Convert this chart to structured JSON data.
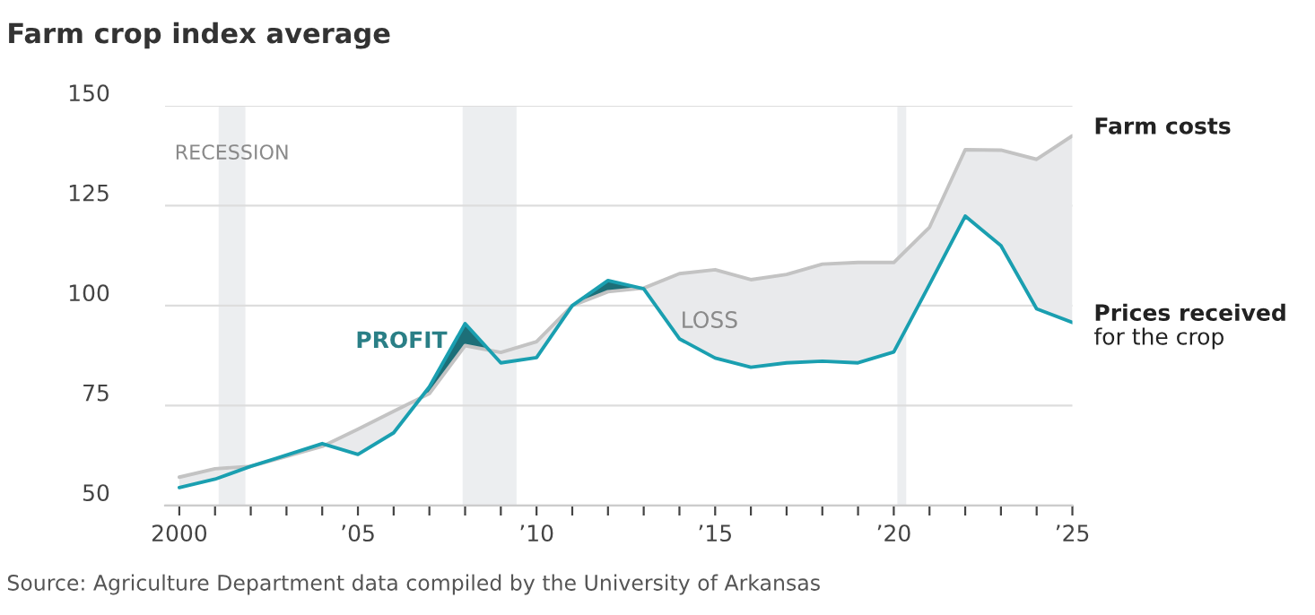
{
  "chart_data": {
    "type": "line",
    "title": "Farm crop index average",
    "x": [
      2000,
      2001,
      2002,
      2003,
      2004,
      2005,
      2006,
      2007,
      2008,
      2009,
      2010,
      2011,
      2012,
      2013,
      2014,
      2015,
      2016,
      2017,
      2018,
      2019,
      2020,
      2021,
      2022,
      2023,
      2024,
      2025
    ],
    "series": [
      {
        "name": "Farm costs",
        "color": "#c3c3c3",
        "values": [
          57.1,
          59.2,
          59.8,
          62.3,
          64.8,
          69.1,
          73.6,
          78,
          90,
          88.3,
          91,
          100,
          103.5,
          104.4,
          108,
          109,
          106.5,
          107.8,
          110.4,
          110.8,
          110.8,
          119.6,
          139,
          138.9,
          136.6,
          142.5
        ]
      },
      {
        "name": "Prices received\nfor the crop",
        "color": "#1a9fb0",
        "values": [
          54.5,
          56.6,
          59.8,
          62.6,
          65.5,
          62.8,
          68.2,
          79.7,
          95.5,
          85.7,
          87,
          100,
          106.3,
          104.2,
          91.7,
          86.9,
          84.6,
          85.7,
          86.1,
          85.7,
          88.4,
          105.3,
          122.4,
          115,
          99.2,
          95.8
        ]
      }
    ],
    "xlim": [
      1999.6,
      2025
    ],
    "xticks": [
      {
        "value": 2000,
        "label": "2000"
      },
      {
        "value": 2001,
        "label": null
      },
      {
        "value": 2002,
        "label": null
      },
      {
        "value": 2003,
        "label": null
      },
      {
        "value": 2004,
        "label": null
      },
      {
        "value": 2005,
        "label": "’05"
      },
      {
        "value": 2006,
        "label": null
      },
      {
        "value": 2007,
        "label": null
      },
      {
        "value": 2008,
        "label": null
      },
      {
        "value": 2009,
        "label": null
      },
      {
        "value": 2010,
        "label": "’10"
      },
      {
        "value": 2011,
        "label": null
      },
      {
        "value": 2012,
        "label": null
      },
      {
        "value": 2013,
        "label": null
      },
      {
        "value": 2014,
        "label": null
      },
      {
        "value": 2015,
        "label": "’15"
      },
      {
        "value": 2016,
        "label": null
      },
      {
        "value": 2017,
        "label": null
      },
      {
        "value": 2018,
        "label": null
      },
      {
        "value": 2019,
        "label": null
      },
      {
        "value": 2020,
        "label": "’20"
      },
      {
        "value": 2021,
        "label": null
      },
      {
        "value": 2022,
        "label": null
      },
      {
        "value": 2023,
        "label": null
      },
      {
        "value": 2024,
        "label": null
      },
      {
        "value": 2025,
        "label": "’25"
      }
    ],
    "ylim": [
      50,
      150
    ],
    "yticks": [
      50,
      75,
      100,
      125,
      150
    ],
    "grid": "y",
    "legend": false,
    "bands": [
      {
        "axis": "x",
        "from": 2001.1,
        "to": 2001.85,
        "label": "RECESSION",
        "color": "#eceef0"
      },
      {
        "axis": "x",
        "from": 2007.93,
        "to": 2009.44,
        "label": null,
        "color": "#eceef0"
      },
      {
        "axis": "x",
        "from": 2020.1,
        "to": 2020.35,
        "label": null,
        "color": "#eceef0"
      }
    ],
    "annotations": [
      {
        "text": "PROFIT",
        "x": 2007.5,
        "y": 91
      },
      "LOSS",
      "Source: Agriculture Department data compiled by the University of Arkansas"
    ]
  }
}
